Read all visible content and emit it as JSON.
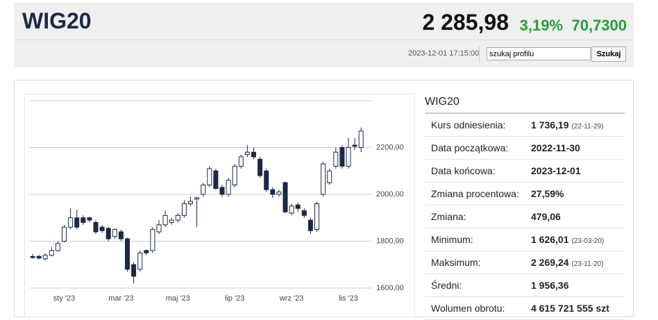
{
  "header": {
    "title": "WIG20",
    "price": "2 285,98",
    "change_pct": "3,19%",
    "change_value": "70,7300",
    "datetime": "2023-12-01 17:15:00",
    "search_text": "szukaj profilu",
    "search_button": "Szukaj"
  },
  "chart_data": {
    "type": "candlestick",
    "color_down": "#1c2846",
    "color_up": "#ffffff",
    "grid": true,
    "categories": [
      null,
      null,
      null,
      null,
      null,
      "sty '23",
      null,
      null,
      null,
      null,
      null,
      null,
      null,
      null,
      "mar '23",
      null,
      null,
      null,
      null,
      null,
      null,
      null,
      null,
      "maj '23",
      null,
      null,
      null,
      null,
      null,
      null,
      null,
      null,
      "lip '23",
      null,
      null,
      null,
      null,
      null,
      null,
      null,
      null,
      "wrz '23",
      null,
      null,
      null,
      null,
      null,
      null,
      null,
      null,
      "lis '23",
      null,
      null
    ],
    "open": [
      1735,
      1735,
      1725,
      1740,
      1760,
      1800,
      1860,
      1900,
      1900,
      1900,
      1880,
      1860,
      1855,
      1820,
      1840,
      1810,
      1700,
      1680,
      1760,
      1760,
      1840,
      1870,
      1880,
      1890,
      1910,
      1960,
      1980,
      2000,
      2040,
      2100,
      2030,
      2000,
      2040,
      2120,
      2170,
      2180,
      2150,
      2100,
      2020,
      2000,
      2050,
      1920,
      1955,
      1930,
      1890,
      1850,
      2000,
      2050,
      2120,
      2200,
      2120,
      2210,
      2200
    ],
    "close": [
      1730,
      1728,
      1740,
      1760,
      1790,
      1860,
      1900,
      1860,
      1880,
      1890,
      1840,
      1845,
      1810,
      1850,
      1810,
      1680,
      1650,
      1750,
      1750,
      1850,
      1870,
      1910,
      1890,
      1910,
      1960,
      1970,
      1985,
      2040,
      2110,
      2025,
      2000,
      2060,
      2120,
      2160,
      2180,
      2160,
      2080,
      2020,
      2000,
      2010,
      1925,
      1950,
      1940,
      1910,
      1845,
      1960,
      2130,
      2100,
      2180,
      2120,
      2200,
      2205,
      2270
    ],
    "high": [
      1745,
      1742,
      1748,
      1775,
      1800,
      1870,
      1940,
      1935,
      1910,
      1905,
      1890,
      1870,
      1860,
      1855,
      1850,
      1815,
      1710,
      1760,
      1765,
      1860,
      1890,
      1930,
      1900,
      1920,
      1975,
      1990,
      1990,
      2050,
      2120,
      2110,
      2040,
      2070,
      2130,
      2170,
      2210,
      2200,
      2160,
      2110,
      2030,
      2020,
      2055,
      1960,
      1965,
      1940,
      1900,
      1970,
      2140,
      2110,
      2200,
      2210,
      2240,
      2240,
      2285
    ],
    "low": [
      1725,
      1722,
      1718,
      1735,
      1755,
      1795,
      1850,
      1850,
      1870,
      1880,
      1830,
      1835,
      1800,
      1810,
      1800,
      1670,
      1620,
      1670,
      1740,
      1750,
      1830,
      1860,
      1870,
      1880,
      1900,
      1950,
      1860,
      1990,
      2030,
      2020,
      1990,
      1990,
      2030,
      2110,
      2160,
      2150,
      2070,
      2010,
      1985,
      1990,
      1920,
      1910,
      1925,
      1900,
      1830,
      1840,
      1990,
      2040,
      2110,
      2110,
      2110,
      2190,
      2180
    ],
    "ylim": [
      1585,
      2400
    ],
    "yticks": [
      {
        "value": 1600,
        "label": "1600,00"
      },
      {
        "value": 1800,
        "label": "1800,00"
      },
      {
        "value": 2000,
        "label": "2000,00"
      },
      {
        "value": 2200,
        "label": "2200,00"
      }
    ]
  },
  "table": {
    "title": "WIG20",
    "rows": [
      {
        "label": "Kurs odniesienia:",
        "value": "1 736,19",
        "note": "(22-11-29)"
      },
      {
        "label": "Data początkowa:",
        "value": "2022-11-30"
      },
      {
        "label": "Data końcowa:",
        "value": "2023-12-01"
      },
      {
        "label": "Zmiana procentowa:",
        "value": "27,59%"
      },
      {
        "label": "Zmiana:",
        "value": "479,06"
      },
      {
        "label": "Minimum:",
        "value": "1 626,01",
        "note": "(23-03-20)"
      },
      {
        "label": "Maksimum:",
        "value": "2 269,24",
        "note": "(23-11-20)"
      },
      {
        "label": "Średni:",
        "value": "1 956,36"
      },
      {
        "label": "Wolumen obrotu:",
        "value": "4 615 721 555 szt"
      }
    ]
  }
}
